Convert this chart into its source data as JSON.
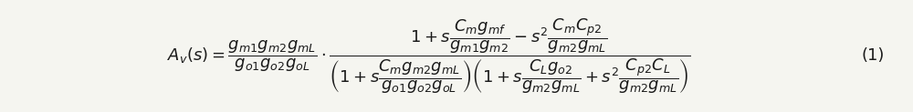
{
  "equation": "A_v(s) = \\frac{g_{m1}g_{m2}g_{mL}}{g_{o1}g_{o2}g_{oL}} \\cdot \\frac{1 + s\\dfrac{C_m g_{mf}}{g_{m1}g_{m2}} - s^2\\dfrac{C_m C_{p2}}{g_{m2}g_{mL}}}{\\left(1 + s\\dfrac{C_m g_{m2}g_{mL}}{g_{o1}g_{o2}g_{oL}}\\right)\\left(1 + s\\dfrac{C_L g_{o2}}{g_{m2}g_{mL}} + s^2\\dfrac{C_{p2}C_L}{g_{m2}g_{mL}}\\right)}",
  "label": "(1)",
  "background_color": "#f5f5f0",
  "text_color": "#1a1a1a",
  "fontsize": 13,
  "figsize": [
    10.0,
    1.23
  ],
  "dpi": 100
}
